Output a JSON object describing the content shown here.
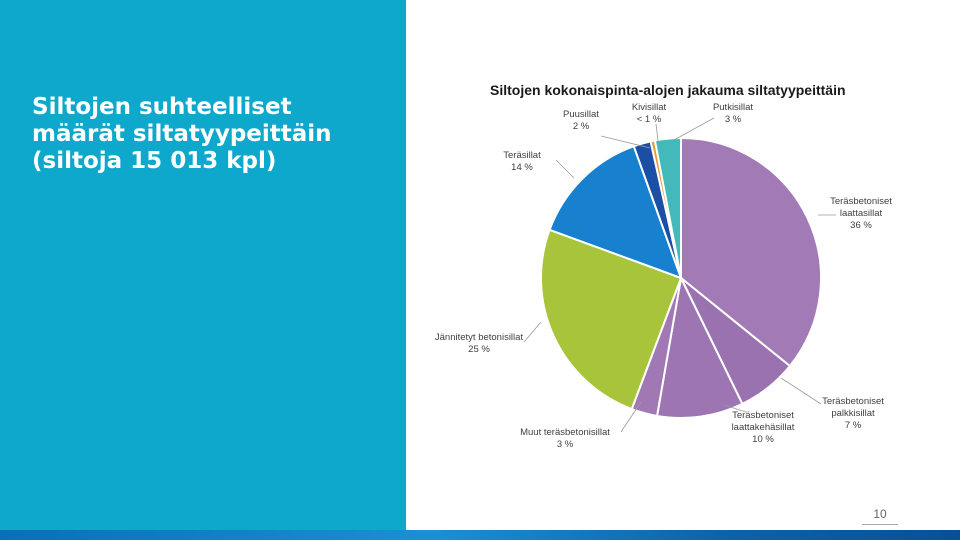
{
  "slide": {
    "title": "Siltojen suhteelliset\nmäärät siltatyypeittäin\n(siltoja 15 013  kpl)",
    "page_number": "10"
  },
  "colors": {
    "panel": "#0fa8cd",
    "bar": "#0a6fb7"
  },
  "chart_data": {
    "type": "pie",
    "title": "Siltojen kokonaispinta-alojen jakauma siltatyypeittäin",
    "legend": "none",
    "slices": [
      {
        "label": [
          "Teräsbetoniset",
          "laattasillat"
        ],
        "value_label": "36 %",
        "value": 36,
        "color": "#a27bb6"
      },
      {
        "label": [
          "Teräsbetoniset",
          "palkkisillat"
        ],
        "value_label": "7 %",
        "value": 7,
        "color": "#9b72b0"
      },
      {
        "label": [
          "Teräsbetoniset",
          "laattakehäsillat"
        ],
        "value_label": "10 %",
        "value": 10,
        "color": "#9e75b3"
      },
      {
        "label": [
          "Muut teräsbetonisillat"
        ],
        "value_label": "3 %",
        "value": 3,
        "color": "#a078b4"
      },
      {
        "label": [
          "Jännitetyt betonisillat"
        ],
        "value_label": "25 %",
        "value": 25,
        "color": "#a8c43a"
      },
      {
        "label": [
          "Teräsillat"
        ],
        "value_label": "14 %",
        "value": 14,
        "color": "#1780cf"
      },
      {
        "label": [
          "Puusillat"
        ],
        "value_label": "2 %",
        "value": 2,
        "color": "#1b4fa5"
      },
      {
        "label": [
          "Kivisillat"
        ],
        "value_label": "< 1 %",
        "value": 0.5,
        "color": "#e39a3a"
      },
      {
        "label": [
          "Putkisillat"
        ],
        "value_label": "3 %",
        "value": 3,
        "color": "#44b9ba"
      }
    ]
  }
}
